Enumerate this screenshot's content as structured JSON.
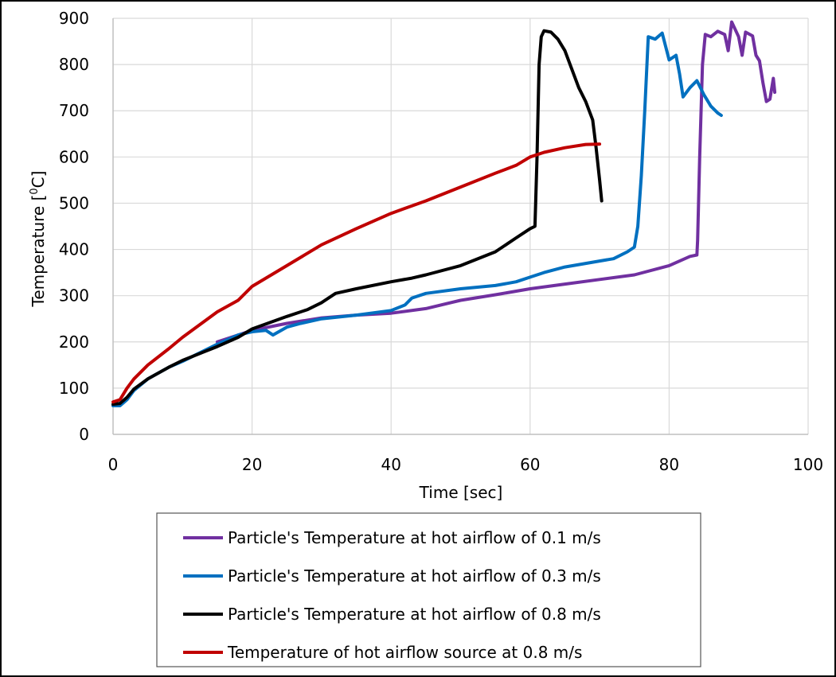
{
  "chart_data": {
    "type": "line",
    "xlabel": "Time [sec]",
    "ylabel_parts": {
      "base": "Temperature [",
      "sup": "0",
      "unit": "C]"
    },
    "xlim": [
      0,
      100
    ],
    "ylim": [
      0,
      900
    ],
    "xticks": [
      0,
      20,
      40,
      60,
      80,
      100
    ],
    "yticks": [
      0,
      100,
      200,
      300,
      400,
      500,
      600,
      700,
      800,
      900
    ],
    "grid": true,
    "legend_position": "bottom",
    "series": [
      {
        "name": "Particle's Temperature at hot airflow of 0.1 m/s",
        "color": "#7030a0",
        "points": [
          [
            15,
            200
          ],
          [
            18,
            215
          ],
          [
            20,
            225
          ],
          [
            25,
            240
          ],
          [
            30,
            252
          ],
          [
            35,
            258
          ],
          [
            40,
            262
          ],
          [
            45,
            272
          ],
          [
            50,
            290
          ],
          [
            55,
            302
          ],
          [
            60,
            315
          ],
          [
            65,
            325
          ],
          [
            70,
            335
          ],
          [
            75,
            345
          ],
          [
            80,
            365
          ],
          [
            83,
            385
          ],
          [
            84,
            388
          ],
          [
            84.1,
            420
          ],
          [
            84.4,
            600
          ],
          [
            84.8,
            800
          ],
          [
            85.2,
            865
          ],
          [
            86,
            860
          ],
          [
            87,
            872
          ],
          [
            88,
            865
          ],
          [
            88.5,
            830
          ],
          [
            89,
            892
          ],
          [
            90,
            860
          ],
          [
            90.5,
            820
          ],
          [
            91,
            870
          ],
          [
            92,
            862
          ],
          [
            92.5,
            820
          ],
          [
            93,
            808
          ],
          [
            93.5,
            760
          ],
          [
            94,
            720
          ],
          [
            94.5,
            725
          ],
          [
            95,
            770
          ],
          [
            95.2,
            740
          ]
        ]
      },
      {
        "name": "Particle's Temperature at hot airflow of 0.3 m/s",
        "color": "#0070c0",
        "points": [
          [
            0,
            62
          ],
          [
            1,
            62
          ],
          [
            2,
            75
          ],
          [
            3,
            95
          ],
          [
            5,
            120
          ],
          [
            8,
            145
          ],
          [
            10,
            158
          ],
          [
            15,
            195
          ],
          [
            18,
            215
          ],
          [
            20,
            222
          ],
          [
            22,
            225
          ],
          [
            23,
            215
          ],
          [
            25,
            232
          ],
          [
            27,
            240
          ],
          [
            30,
            250
          ],
          [
            35,
            258
          ],
          [
            40,
            268
          ],
          [
            42,
            280
          ],
          [
            43,
            295
          ],
          [
            45,
            305
          ],
          [
            50,
            315
          ],
          [
            55,
            322
          ],
          [
            58,
            330
          ],
          [
            60,
            340
          ],
          [
            62,
            350
          ],
          [
            65,
            362
          ],
          [
            70,
            375
          ],
          [
            72,
            380
          ],
          [
            74,
            395
          ],
          [
            75,
            405
          ],
          [
            75.5,
            450
          ],
          [
            76,
            560
          ],
          [
            76.5,
            700
          ],
          [
            77,
            860
          ],
          [
            78,
            855
          ],
          [
            79,
            868
          ],
          [
            80,
            810
          ],
          [
            81,
            820
          ],
          [
            81.5,
            780
          ],
          [
            82,
            730
          ],
          [
            83,
            750
          ],
          [
            84,
            765
          ],
          [
            85,
            735
          ],
          [
            86,
            710
          ],
          [
            87,
            695
          ],
          [
            87.5,
            690
          ]
        ]
      },
      {
        "name": "Particle's Temperature at hot airflow of 0.8 m/s",
        "color": "#000000",
        "points": [
          [
            0,
            65
          ],
          [
            1,
            67
          ],
          [
            2,
            80
          ],
          [
            3,
            98
          ],
          [
            5,
            120
          ],
          [
            8,
            145
          ],
          [
            10,
            160
          ],
          [
            15,
            190
          ],
          [
            18,
            210
          ],
          [
            20,
            228
          ],
          [
            25,
            255
          ],
          [
            28,
            270
          ],
          [
            30,
            285
          ],
          [
            32,
            305
          ],
          [
            35,
            315
          ],
          [
            40,
            330
          ],
          [
            43,
            338
          ],
          [
            45,
            345
          ],
          [
            50,
            365
          ],
          [
            55,
            395
          ],
          [
            58,
            425
          ],
          [
            60,
            445
          ],
          [
            60.7,
            450
          ],
          [
            61,
            600
          ],
          [
            61.3,
            800
          ],
          [
            61.6,
            860
          ],
          [
            62,
            873
          ],
          [
            63,
            870
          ],
          [
            64,
            855
          ],
          [
            65,
            830
          ],
          [
            66,
            790
          ],
          [
            67,
            750
          ],
          [
            68,
            720
          ],
          [
            69,
            680
          ],
          [
            69.5,
            620
          ],
          [
            70,
            550
          ],
          [
            70.3,
            505
          ]
        ]
      },
      {
        "name": "Temperature of hot airflow source at 0.8 m/s",
        "color": "#c00000",
        "points": [
          [
            0,
            70
          ],
          [
            1,
            75
          ],
          [
            2,
            100
          ],
          [
            3,
            120
          ],
          [
            5,
            150
          ],
          [
            8,
            185
          ],
          [
            10,
            210
          ],
          [
            15,
            265
          ],
          [
            18,
            290
          ],
          [
            20,
            320
          ],
          [
            25,
            365
          ],
          [
            30,
            410
          ],
          [
            35,
            445
          ],
          [
            40,
            478
          ],
          [
            45,
            505
          ],
          [
            50,
            535
          ],
          [
            55,
            565
          ],
          [
            58,
            582
          ],
          [
            60,
            600
          ],
          [
            62,
            610
          ],
          [
            65,
            620
          ],
          [
            68,
            627
          ],
          [
            70,
            628
          ]
        ]
      }
    ]
  }
}
